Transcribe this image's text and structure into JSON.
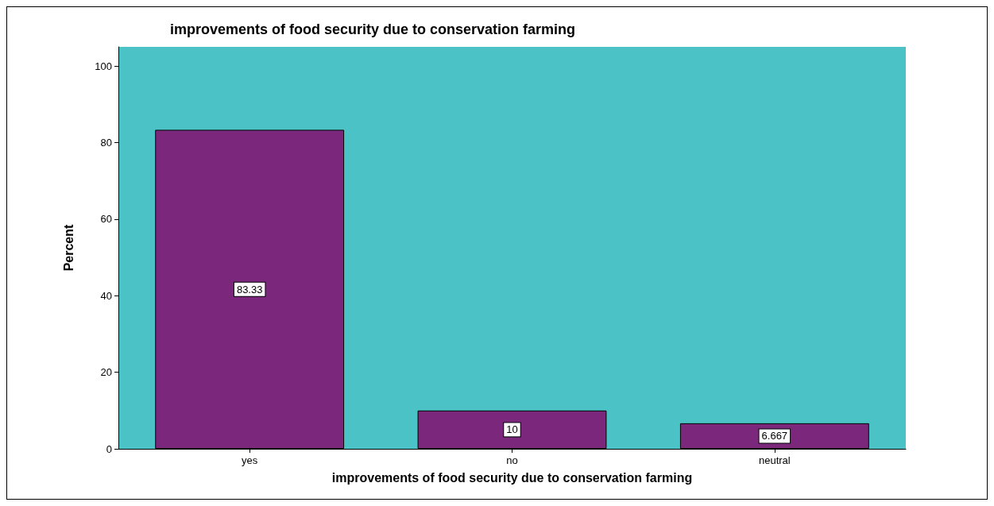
{
  "chart_data": {
    "type": "bar",
    "title": "improvements of food security due to conservation farming",
    "xlabel": "improvements of food security due to conservation farming",
    "ylabel": "Percent",
    "categories": [
      "yes",
      "no",
      "neutral"
    ],
    "values": [
      83.33,
      10,
      6.667
    ],
    "color": "#7b287c",
    "ylim": [
      0,
      105
    ],
    "yticks": [
      0,
      20,
      40,
      60,
      80,
      100
    ],
    "grid": false,
    "data_labels": true
  }
}
